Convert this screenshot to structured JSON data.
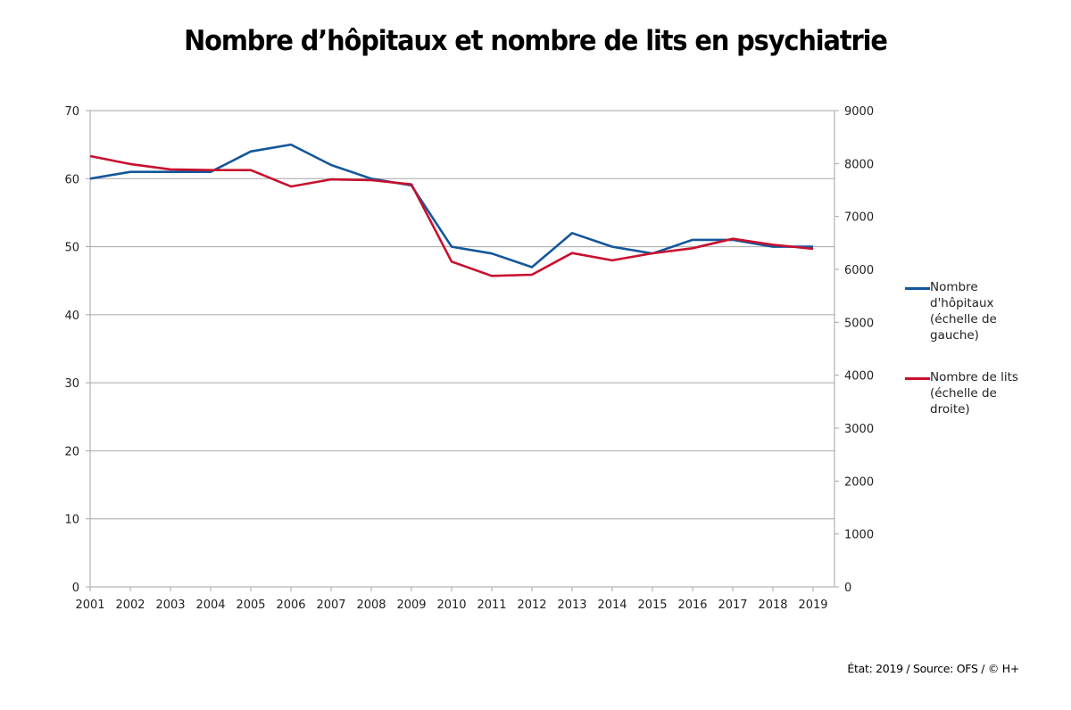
{
  "title": "Nombre d’hôpitaux et nombre de lits en psychiatrie",
  "footer": "État: 2019 / Source: OFS / © H+",
  "chart_data": {
    "type": "line",
    "title": "Nombre d’hôpitaux et nombre de lits en psychiatrie",
    "xlabel": "",
    "ylabel_left": "",
    "ylabel_right": "",
    "categories": [
      "2001",
      "2002",
      "2003",
      "2004",
      "2005",
      "2006",
      "2007",
      "2008",
      "2009",
      "2010",
      "2011",
      "2012",
      "2013",
      "2014",
      "2015",
      "2016",
      "2017",
      "2018",
      "2019"
    ],
    "y_left": {
      "lim": [
        0,
        70
      ],
      "ticks": [
        "0",
        "10",
        "20",
        "30",
        "40",
        "50",
        "60",
        "70"
      ]
    },
    "y_right": {
      "lim": [
        0,
        9000
      ],
      "ticks": [
        "0",
        "1000",
        "2000",
        "3000",
        "4000",
        "5000",
        "6000",
        "7000",
        "8000",
        "9000"
      ]
    },
    "grid": true,
    "legend_position": "right",
    "series": [
      {
        "name": "Nombre d'hôpitaux (échelle de gauche)",
        "axis": "left",
        "color": "#13579b",
        "values": [
          60,
          61,
          61,
          61,
          64,
          65,
          62,
          60,
          59,
          50,
          49,
          47,
          52,
          50,
          49,
          51,
          51,
          50,
          50
        ]
      },
      {
        "name": "Nombre de lits (échelle de droite)",
        "axis": "right",
        "color": "#c8102e",
        "values": [
          8140,
          7990,
          7890,
          7876,
          7876,
          7565,
          7700,
          7685,
          7606,
          6147,
          5877,
          5899,
          6308,
          6171,
          6303,
          6399,
          6578,
          6466,
          6388
        ]
      }
    ]
  },
  "legend": {
    "items": [
      {
        "label": "Nombre d'hôpitaux (échelle de gauche)",
        "color": "#13579b"
      },
      {
        "label": "Nombre de lits (échelle de droite)",
        "color": "#c8102e"
      }
    ]
  }
}
